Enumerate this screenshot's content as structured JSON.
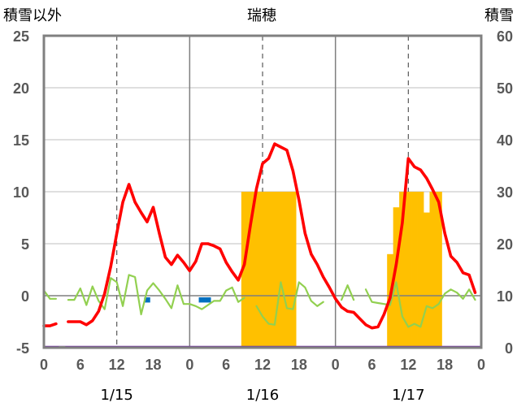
{
  "chart_data": {
    "type": "line",
    "title": "瑞穂",
    "left_axis_label": "積雪以外",
    "right_axis_label": "積雪",
    "ylim": [
      -5,
      25
    ],
    "y_ticks": [
      "25",
      "20",
      "15",
      "10",
      "5",
      "0",
      "-5"
    ],
    "y2lim": [
      0,
      60
    ],
    "y2_ticks": [
      "60",
      "50",
      "40",
      "30",
      "20",
      "10",
      "0"
    ],
    "xlim": [
      0,
      72
    ],
    "x_tick_labels": [
      "0",
      "6",
      "12",
      "18",
      "0",
      "6",
      "12",
      "18",
      "0",
      "6",
      "12",
      "18",
      "0"
    ],
    "date_labels": [
      "1/15",
      "1/16",
      "1/17"
    ],
    "grid": "dashed vertical at 12h, solid vertical at day boundaries",
    "colors": {
      "temperature": "#ff0000",
      "wind": "#92d050",
      "precipitation": "#0070c0",
      "snow_depth": "#ffc000",
      "baseline": "#7030a0",
      "frame": "#808080"
    },
    "series": [
      {
        "key": "temperature",
        "axis": "left",
        "points": [
          [
            0,
            -2.9
          ],
          [
            1,
            -2.9
          ],
          [
            2,
            -2.7
          ],
          [
            3,
            null
          ],
          [
            4,
            -2.5
          ],
          [
            5,
            -2.5
          ],
          [
            6,
            -2.5
          ],
          [
            7,
            -2.8
          ],
          [
            8,
            -2.4
          ],
          [
            9,
            -1.5
          ],
          [
            10,
            0.2
          ],
          [
            11,
            2.8
          ],
          [
            12,
            6.0
          ],
          [
            13,
            9.0
          ],
          [
            14,
            10.7
          ],
          [
            15,
            9.0
          ],
          [
            16,
            8.0
          ],
          [
            17,
            7.1
          ],
          [
            18,
            8.5
          ],
          [
            19,
            6.0
          ],
          [
            20,
            3.7
          ],
          [
            21,
            3.0
          ],
          [
            22,
            3.9
          ],
          [
            23,
            3.2
          ],
          [
            24,
            2.4
          ],
          [
            25,
            3.3
          ],
          [
            26,
            5.0
          ],
          [
            27,
            5.0
          ],
          [
            28,
            4.8
          ],
          [
            29,
            4.5
          ],
          [
            30,
            3.2
          ],
          [
            31,
            2.3
          ],
          [
            32,
            1.5
          ],
          [
            33,
            3.0
          ],
          [
            34,
            6.8
          ],
          [
            35,
            10.3
          ],
          [
            36,
            12.7
          ],
          [
            37,
            13.2
          ],
          [
            38,
            14.6
          ],
          [
            39,
            14.3
          ],
          [
            40,
            14.0
          ],
          [
            41,
            12.0
          ],
          [
            42,
            9.2
          ],
          [
            43,
            6.0
          ],
          [
            44,
            4.0
          ],
          [
            45,
            3.0
          ],
          [
            46,
            1.8
          ],
          [
            47,
            0.8
          ],
          [
            48,
            -0.3
          ],
          [
            49,
            -1.1
          ],
          [
            50,
            -1.5
          ],
          [
            51,
            -1.6
          ],
          [
            52,
            -2.2
          ],
          [
            53,
            -2.8
          ],
          [
            54,
            -3.1
          ],
          [
            55,
            -3.0
          ],
          [
            56,
            -1.8
          ],
          [
            57,
            -0.2
          ],
          [
            58,
            3.0
          ],
          [
            59,
            7.0
          ],
          [
            60,
            13.2
          ],
          [
            61,
            12.4
          ],
          [
            62,
            12.1
          ],
          [
            63,
            11.3
          ],
          [
            64,
            10.2
          ],
          [
            65,
            9.0
          ],
          [
            66,
            6.0
          ],
          [
            67,
            3.8
          ],
          [
            68,
            3.2
          ],
          [
            69,
            2.2
          ],
          [
            70,
            2.0
          ],
          [
            71,
            0.3
          ]
        ]
      },
      {
        "key": "wind",
        "axis": "left",
        "points": [
          [
            0,
            0.5
          ],
          [
            1,
            -0.3
          ],
          [
            2,
            -0.3
          ],
          [
            3,
            null
          ],
          [
            4,
            -0.4
          ],
          [
            5,
            -0.4
          ],
          [
            6,
            0.7
          ],
          [
            7,
            -0.9
          ],
          [
            8,
            0.9
          ],
          [
            9,
            -0.5
          ],
          [
            10,
            -1.3
          ],
          [
            11,
            1.7
          ],
          [
            12,
            1.3
          ],
          [
            13,
            -1.0
          ],
          [
            14,
            2.0
          ],
          [
            15,
            1.8
          ],
          [
            16,
            -1.8
          ],
          [
            17,
            0.5
          ],
          [
            18,
            1.2
          ],
          [
            19,
            0.5
          ],
          [
            20,
            -0.3
          ],
          [
            21,
            -1.2
          ],
          [
            22,
            1.0
          ],
          [
            23,
            -0.8
          ],
          [
            24,
            -0.8
          ],
          [
            25,
            -1.0
          ],
          [
            26,
            -1.3
          ],
          [
            27,
            -0.9
          ],
          [
            28,
            -0.5
          ],
          [
            29,
            -0.5
          ],
          [
            30,
            0.5
          ],
          [
            31,
            0.8
          ],
          [
            32,
            -0.6
          ],
          [
            33,
            -0.2
          ],
          [
            34,
            null
          ],
          [
            35,
            -1.0
          ],
          [
            36,
            -2.0
          ],
          [
            37,
            -2.7
          ],
          [
            38,
            -2.8
          ],
          [
            39,
            1.3
          ],
          [
            40,
            -1.2
          ],
          [
            41,
            -1.3
          ],
          [
            42,
            1.3
          ],
          [
            43,
            0.8
          ],
          [
            44,
            -0.5
          ],
          [
            45,
            -1.0
          ],
          [
            46,
            -0.6
          ],
          [
            47,
            null
          ],
          [
            48,
            null
          ],
          [
            49,
            -0.4
          ],
          [
            50,
            1.0
          ],
          [
            51,
            -0.4
          ],
          [
            52,
            null
          ],
          [
            53,
            0.6
          ],
          [
            54,
            -0.6
          ],
          [
            55,
            -0.7
          ],
          [
            56,
            -0.8
          ],
          [
            57,
            -0.9
          ],
          [
            58,
            1.3
          ],
          [
            59,
            -2.0
          ],
          [
            60,
            -3.0
          ],
          [
            61,
            -2.7
          ],
          [
            62,
            -3.0
          ],
          [
            63,
            -1.0
          ],
          [
            64,
            -1.2
          ],
          [
            65,
            -0.8
          ],
          [
            66,
            0.2
          ],
          [
            67,
            0.6
          ],
          [
            68,
            0.3
          ],
          [
            69,
            -0.3
          ],
          [
            70,
            0.6
          ],
          [
            71,
            -0.4
          ]
        ]
      },
      {
        "key": "precipitation",
        "axis": "left",
        "points": [
          [
            17,
            -0.5
          ],
          [
            26,
            -0.5
          ],
          [
            27,
            -0.5
          ]
        ]
      },
      {
        "key": "snow_depth",
        "axis": "right",
        "points": [
          [
            33,
            30
          ],
          [
            34,
            30
          ],
          [
            35,
            30
          ],
          [
            36,
            30
          ],
          [
            37,
            30
          ],
          [
            38,
            30
          ],
          [
            39,
            30
          ],
          [
            40,
            30
          ],
          [
            41,
            30
          ],
          [
            57,
            18
          ],
          [
            58,
            27
          ],
          [
            59,
            30
          ],
          [
            60,
            30
          ],
          [
            61,
            30
          ],
          [
            62,
            30
          ],
          [
            63,
            26
          ],
          [
            64,
            30
          ],
          [
            65,
            30
          ]
        ]
      }
    ]
  }
}
